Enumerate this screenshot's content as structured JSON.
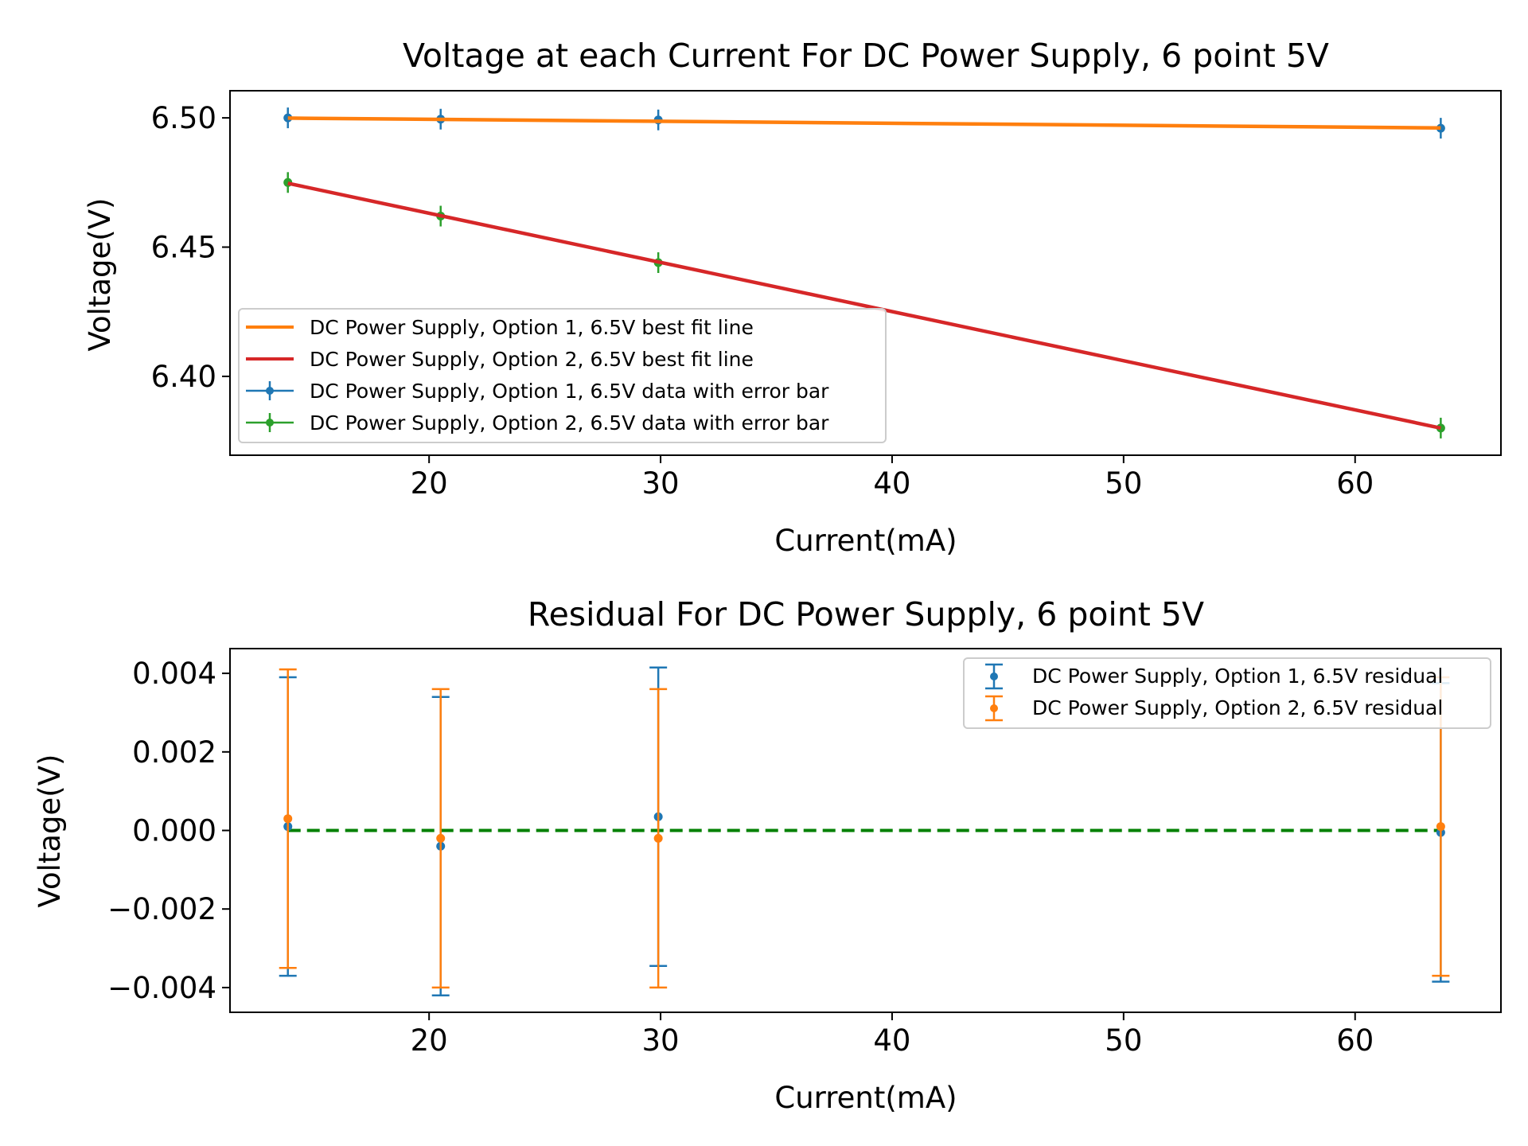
{
  "chart_data": [
    {
      "type": "scatter",
      "title": "Voltage at each Current For DC Power Supply, 6 point 5V",
      "xlabel": "Current(mA)",
      "ylabel": "Voltage(V)",
      "xlim": [
        11.4,
        66.3
      ],
      "ylim": [
        6.3695,
        6.5105
      ],
      "xticks": [
        20,
        30,
        40,
        50,
        60
      ],
      "yticks": [
        6.4,
        6.45,
        6.5
      ],
      "ytick_labels": [
        "6.40",
        "6.45",
        "6.50"
      ],
      "grid": false,
      "legend_position": "lower-left",
      "series": [
        {
          "name": "DC Power Supply, Option 1, 6.5V best fit line",
          "kind": "line",
          "color": "#ff7f0e",
          "x": [
            13.9,
            63.7
          ],
          "y": [
            6.4999,
            6.4961
          ]
        },
        {
          "name": "DC Power Supply, Option 2, 6.5V best fit line",
          "kind": "line",
          "color": "#d62728",
          "x": [
            13.9,
            63.7
          ],
          "y": [
            6.4747,
            6.38
          ]
        },
        {
          "name": "DC Power Supply, Option 1, 6.5V data with error bar",
          "kind": "errorbar",
          "color": "#1f77b4",
          "x": [
            13.9,
            20.5,
            29.9,
            63.7
          ],
          "y": [
            6.5,
            6.4995,
            6.4992,
            6.496
          ],
          "yerr": 0.004
        },
        {
          "name": "DC Power Supply, Option 2, 6.5V data with error bar",
          "kind": "errorbar",
          "color": "#2ca02c",
          "x": [
            13.9,
            20.5,
            29.9,
            63.7
          ],
          "y": [
            6.475,
            6.462,
            6.444,
            6.38
          ],
          "yerr": 0.004
        }
      ]
    },
    {
      "type": "scatter",
      "title": "Residual For DC Power Supply, 6 point 5V",
      "xlabel": "Current(mA)",
      "ylabel": "Voltage(V)",
      "xlim": [
        11.4,
        66.3
      ],
      "ylim": [
        -0.00463,
        0.00463
      ],
      "xticks": [
        20,
        30,
        40,
        50,
        60
      ],
      "yticks": [
        -0.004,
        -0.002,
        0.0,
        0.002,
        0.004
      ],
      "ytick_labels": [
        "−0.004",
        "−0.002",
        "0.000",
        "0.002",
        "0.004"
      ],
      "grid": false,
      "legend_position": "upper-right",
      "reference_line": {
        "y": 0,
        "color": "#008000",
        "style": "dashed"
      },
      "series": [
        {
          "name": "DC Power Supply, Option 1, 6.5V residual",
          "kind": "errorbar",
          "color": "#1f77b4",
          "x": [
            13.9,
            20.5,
            29.9,
            63.7
          ],
          "y": [
            0.0001,
            -0.0004,
            0.00035,
            -5e-05
          ],
          "yerr": 0.0038
        },
        {
          "name": "DC Power Supply, Option 2, 6.5V residual",
          "kind": "errorbar",
          "color": "#ff7f0e",
          "x": [
            13.9,
            20.5,
            29.9,
            63.7
          ],
          "y": [
            0.0003,
            -0.0002,
            -0.0002,
            0.0001
          ],
          "yerr": 0.0038
        }
      ]
    }
  ]
}
